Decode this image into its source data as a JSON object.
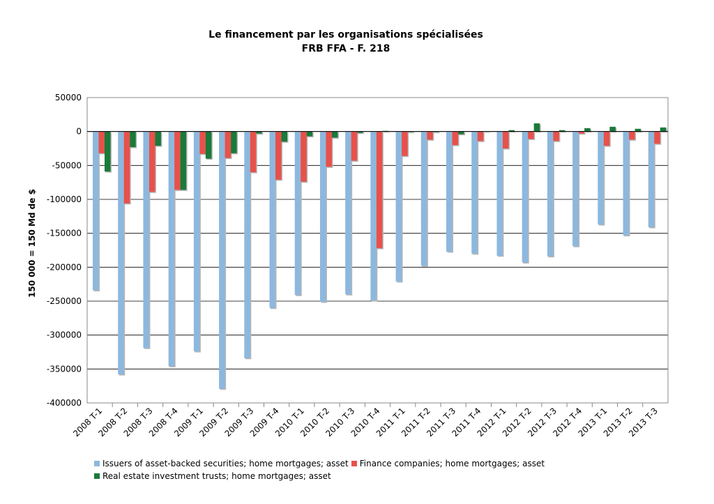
{
  "chart_data": {
    "type": "bar",
    "title": "Le financement par les organisations spécialisées",
    "subtitle": "FRB FFA - F. 218",
    "xlabel": "",
    "ylabel": "150 000 = 150 Md de $",
    "ylim": [
      -400000,
      50000
    ],
    "yticks": [
      50000,
      0,
      -50000,
      -100000,
      -150000,
      -200000,
      -250000,
      -300000,
      -350000,
      -400000
    ],
    "grid": true,
    "legend_position": "bottom",
    "categories": [
      "2008 T-1",
      "2008 T-2",
      "2008 T-3",
      "2008 T-4",
      "2009 T-1",
      "2009 T-2",
      "2009 T-3",
      "2009 T-4",
      "2010 T-1",
      "2010 T-2",
      "2010 T-3",
      "2010 T-4",
      "2011 T-1",
      "2011 T-2",
      "2011 T-3",
      "2011 T-4",
      "2012 T-1",
      "2012 T-2",
      "2012 T-3",
      "2012 T-4",
      "2013 T-1",
      "2013 T-2",
      "2013 T-3"
    ],
    "series": [
      {
        "name": "Issuers of asset-backed securities; home mortgages; asset",
        "color": "#8db8de",
        "values": [
          -234000,
          -358000,
          -319000,
          -346000,
          -324000,
          -379000,
          -334000,
          -260000,
          -241000,
          -251000,
          -240000,
          -249000,
          -221000,
          -198000,
          -177000,
          -180000,
          -183000,
          -193000,
          -184000,
          -169000,
          -137000,
          -153000,
          -141000
        ]
      },
      {
        "name": "Finance companies; home mortgages; asset",
        "color": "#e8514a",
        "values": [
          -32000,
          -106000,
          -89000,
          -86000,
          -33000,
          -39000,
          -60000,
          -71000,
          -74000,
          -52000,
          -43000,
          -172000,
          -36000,
          -12000,
          -20000,
          -14000,
          -25000,
          -11000,
          -14000,
          -3000,
          -21000,
          -12000,
          -18000
        ]
      },
      {
        "name": "Real estate investment trusts; home mortgages; asset",
        "color": "#1a7a3a",
        "values": [
          -59000,
          -23000,
          -21000,
          -86000,
          -40000,
          -32000,
          -3000,
          -15000,
          -7000,
          -9000,
          -2000,
          1000,
          -1000,
          -1000,
          -4000,
          0,
          2000,
          12000,
          2000,
          5000,
          7000,
          4000,
          6000
        ]
      }
    ]
  }
}
